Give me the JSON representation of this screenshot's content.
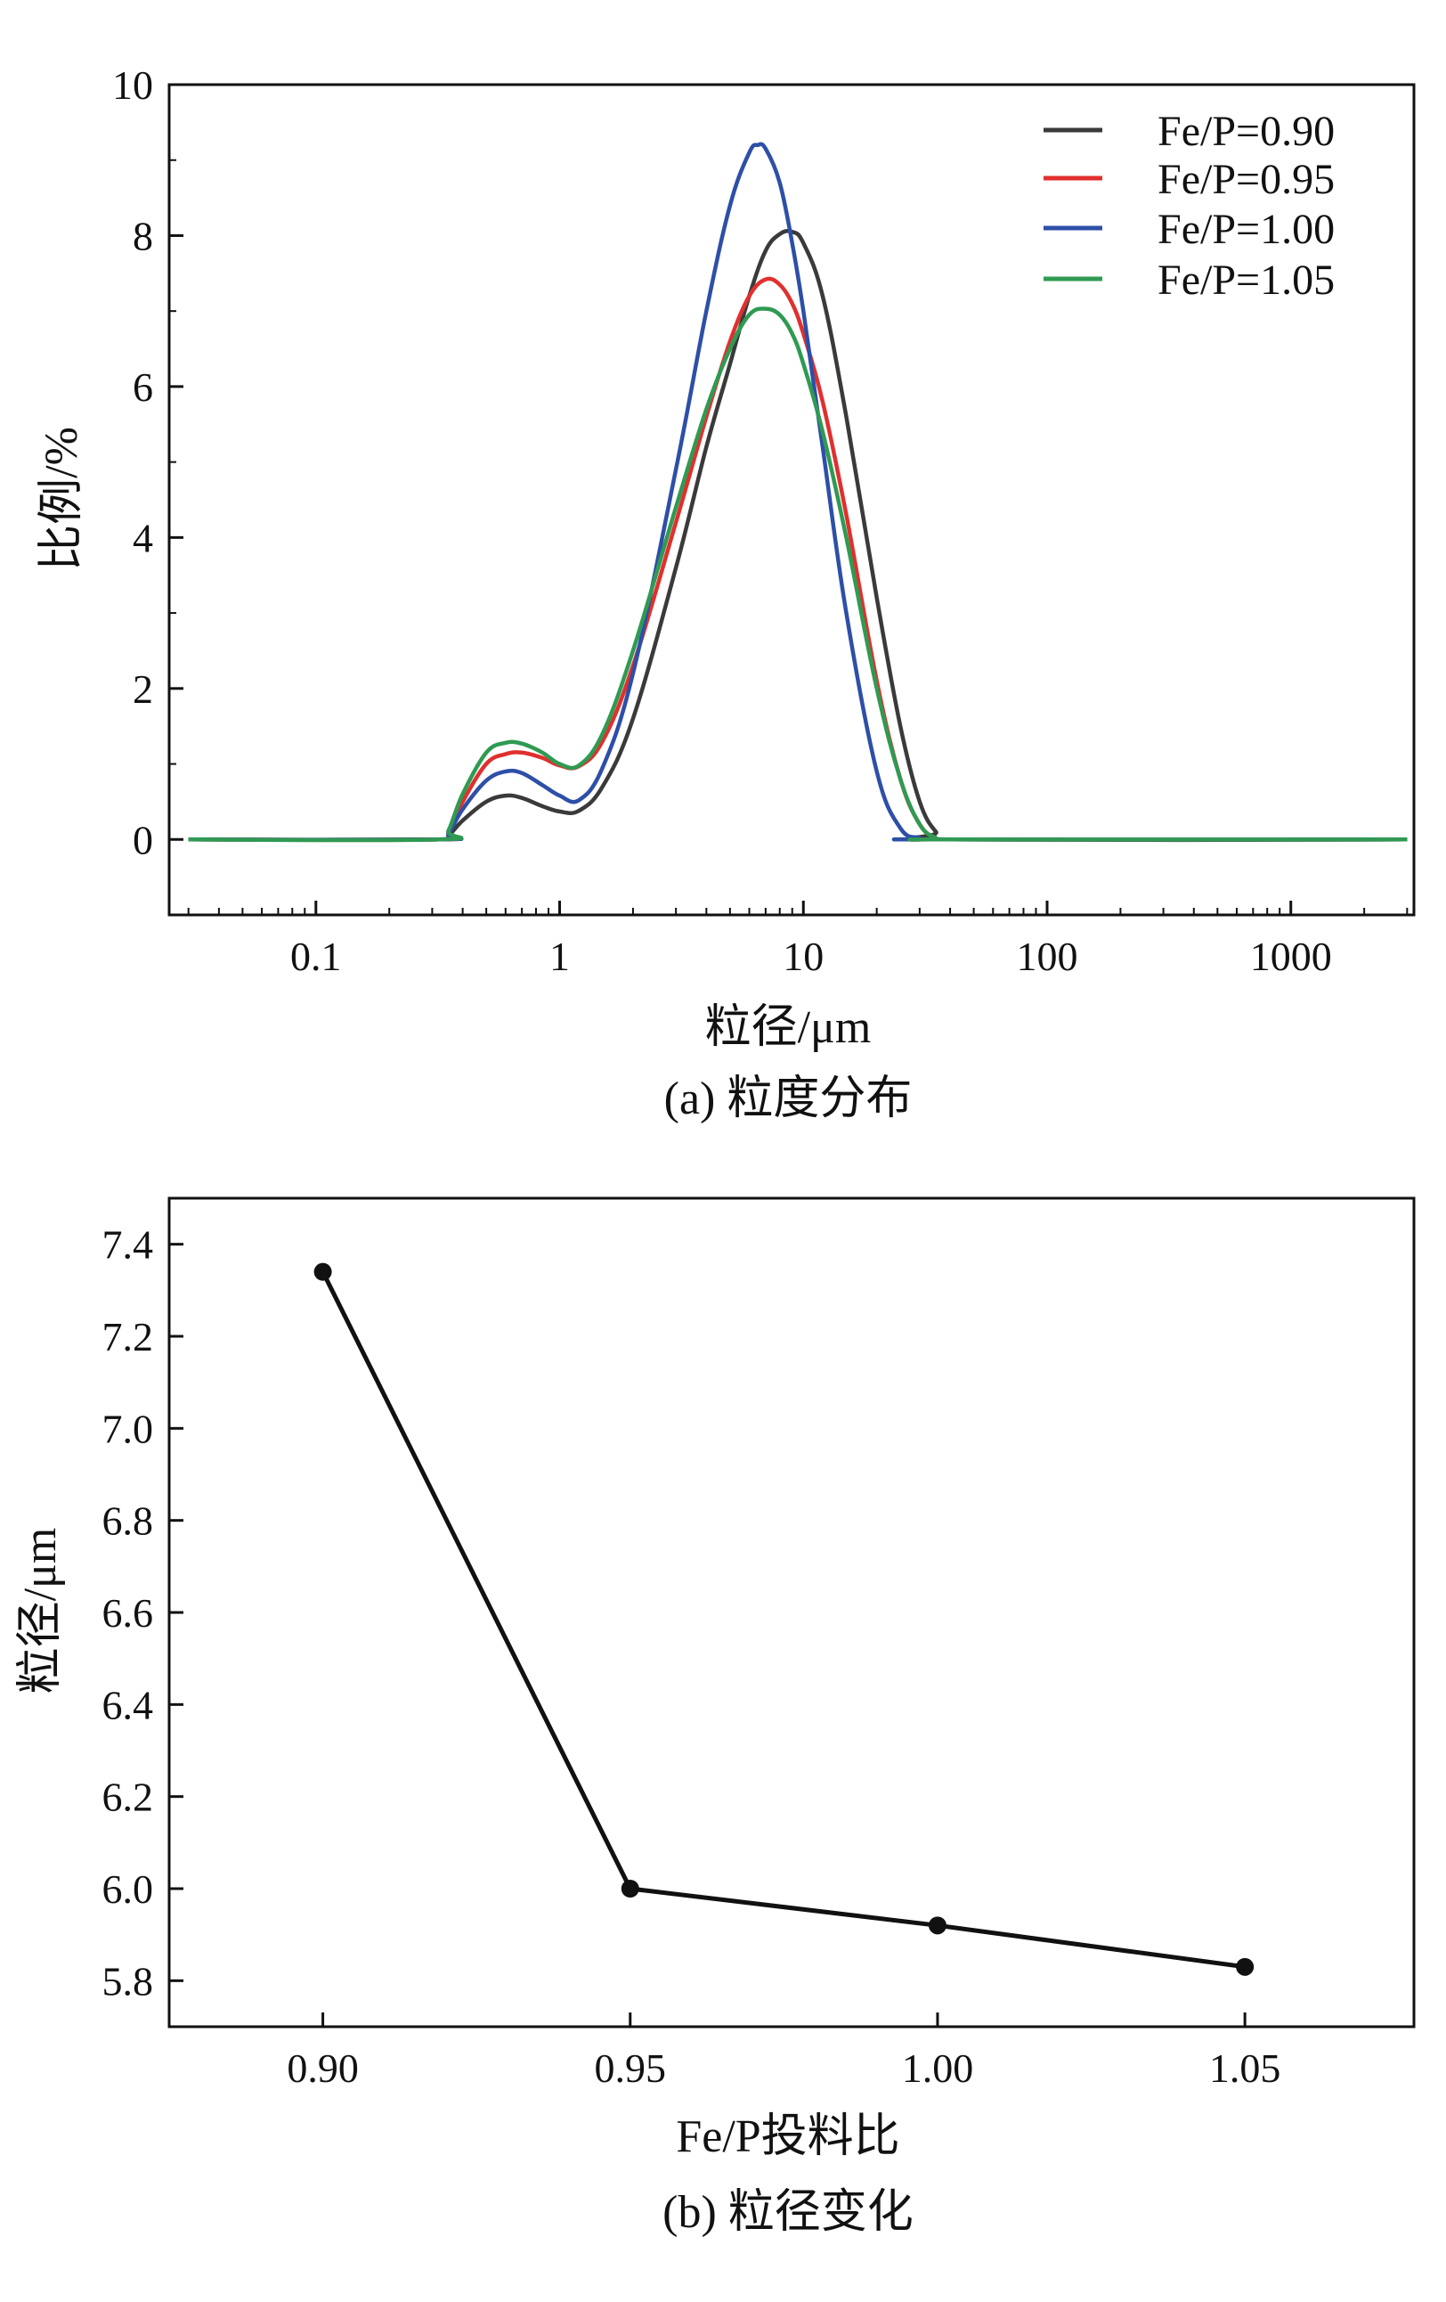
{
  "chart_data": [
    {
      "id": "a",
      "type": "line",
      "caption": "(a) 粒度分布",
      "xlabel": "粒径/μm",
      "ylabel": "比例/%",
      "xscale": "log",
      "xlim": [
        0.025,
        3200
      ],
      "ylim": [
        -1,
        10
      ],
      "xticks": [
        0.1,
        1,
        10,
        100,
        1000
      ],
      "xtick_labels": [
        "0.1",
        "1",
        "10",
        "100",
        "1000"
      ],
      "yticks": [
        0,
        2,
        4,
        6,
        8,
        10
      ],
      "ytick_labels": [
        "0",
        "2",
        "4",
        "6",
        "8",
        "10"
      ],
      "legend_position": "top-right",
      "series": [
        {
          "name": "Fe/P=0.90",
          "color": "#3a3a3a",
          "points": [
            [
              0.03,
              0
            ],
            [
              0.32,
              0
            ],
            [
              0.35,
              0.05
            ],
            [
              0.4,
              0.25
            ],
            [
              0.5,
              0.5
            ],
            [
              0.6,
              0.58
            ],
            [
              0.7,
              0.55
            ],
            [
              0.85,
              0.44
            ],
            [
              1.0,
              0.37
            ],
            [
              1.2,
              0.38
            ],
            [
              1.5,
              0.7
            ],
            [
              2.0,
              1.6
            ],
            [
              3.0,
              3.6
            ],
            [
              4.0,
              5.2
            ],
            [
              5.0,
              6.3
            ],
            [
              6.0,
              7.2
            ],
            [
              7.0,
              7.8
            ],
            [
              8.0,
              8.02
            ],
            [
              9.0,
              8.05
            ],
            [
              10.0,
              7.9
            ],
            [
              12.0,
              7.2
            ],
            [
              15.0,
              5.6
            ],
            [
              20.0,
              3.2
            ],
            [
              25.0,
              1.5
            ],
            [
              30.0,
              0.5
            ],
            [
              35.0,
              0.1
            ],
            [
              40.0,
              0
            ],
            [
              3000,
              0
            ]
          ]
        },
        {
          "name": "Fe/P=0.95",
          "color": "#e0302e",
          "points": [
            [
              0.03,
              0
            ],
            [
              0.32,
              0
            ],
            [
              0.35,
              0.1
            ],
            [
              0.4,
              0.5
            ],
            [
              0.5,
              1.0
            ],
            [
              0.6,
              1.13
            ],
            [
              0.7,
              1.15
            ],
            [
              0.85,
              1.08
            ],
            [
              1.0,
              0.98
            ],
            [
              1.2,
              0.97
            ],
            [
              1.5,
              1.3
            ],
            [
              2.0,
              2.3
            ],
            [
              3.0,
              4.2
            ],
            [
              4.0,
              5.6
            ],
            [
              5.0,
              6.6
            ],
            [
              6.0,
              7.2
            ],
            [
              7.0,
              7.42
            ],
            [
              8.0,
              7.35
            ],
            [
              9.0,
              7.1
            ],
            [
              10.0,
              6.7
            ],
            [
              12.0,
              5.8
            ],
            [
              15.0,
              4.3
            ],
            [
              20.0,
              2.1
            ],
            [
              25.0,
              0.8
            ],
            [
              30.0,
              0.2
            ],
            [
              35.0,
              0.02
            ],
            [
              40.0,
              0
            ],
            [
              3000,
              0
            ]
          ]
        },
        {
          "name": "Fe/P=1.00",
          "color": "#2e4fa8",
          "points": [
            [
              0.03,
              0
            ],
            [
              0.32,
              0
            ],
            [
              0.35,
              0.08
            ],
            [
              0.4,
              0.4
            ],
            [
              0.5,
              0.78
            ],
            [
              0.6,
              0.9
            ],
            [
              0.7,
              0.88
            ],
            [
              0.85,
              0.72
            ],
            [
              1.0,
              0.58
            ],
            [
              1.2,
              0.52
            ],
            [
              1.5,
              0.95
            ],
            [
              2.0,
              2.2
            ],
            [
              3.0,
              4.9
            ],
            [
              4.0,
              7.0
            ],
            [
              5.0,
              8.4
            ],
            [
              6.0,
              9.1
            ],
            [
              6.5,
              9.2
            ],
            [
              7.0,
              9.15
            ],
            [
              8.0,
              8.7
            ],
            [
              9.0,
              7.9
            ],
            [
              10.0,
              7.0
            ],
            [
              12.0,
              5.2
            ],
            [
              15.0,
              3.0
            ],
            [
              20.0,
              0.9
            ],
            [
              25.0,
              0.15
            ],
            [
              30.0,
              0.02
            ],
            [
              35.0,
              0
            ],
            [
              3000,
              0
            ]
          ]
        },
        {
          "name": "Fe/P=1.05",
          "color": "#2f9a52",
          "points": [
            [
              0.03,
              0
            ],
            [
              0.32,
              0
            ],
            [
              0.35,
              0.12
            ],
            [
              0.4,
              0.6
            ],
            [
              0.5,
              1.15
            ],
            [
              0.6,
              1.28
            ],
            [
              0.7,
              1.27
            ],
            [
              0.85,
              1.15
            ],
            [
              1.0,
              1.0
            ],
            [
              1.2,
              0.98
            ],
            [
              1.5,
              1.4
            ],
            [
              2.0,
              2.5
            ],
            [
              3.0,
              4.4
            ],
            [
              4.0,
              5.7
            ],
            [
              5.0,
              6.5
            ],
            [
              6.0,
              6.95
            ],
            [
              7.0,
              7.03
            ],
            [
              8.0,
              6.95
            ],
            [
              9.0,
              6.7
            ],
            [
              10.0,
              6.3
            ],
            [
              12.0,
              5.4
            ],
            [
              15.0,
              4.0
            ],
            [
              20.0,
              2.0
            ],
            [
              25.0,
              0.8
            ],
            [
              30.0,
              0.2
            ],
            [
              35.0,
              0.02
            ],
            [
              40.0,
              0
            ],
            [
              3000,
              0
            ]
          ]
        }
      ]
    },
    {
      "id": "b",
      "type": "line",
      "caption": "(b) 粒径变化",
      "xlabel": "Fe/P投料比",
      "ylabel": "粒径/μm",
      "xlim": [
        0.875,
        1.0775
      ],
      "ylim": [
        5.7,
        7.5
      ],
      "xticks": [
        0.9,
        0.95,
        1.0,
        1.05
      ],
      "xtick_labels": [
        "0.90",
        "0.95",
        "1.00",
        "1.05"
      ],
      "yticks": [
        5.8,
        6.0,
        6.2,
        6.4,
        6.6,
        6.8,
        7.0,
        7.2,
        7.4
      ],
      "ytick_labels": [
        "5.8",
        "6.0",
        "6.2",
        "6.4",
        "6.6",
        "6.8",
        "7.0",
        "7.2",
        "7.4"
      ],
      "series": [
        {
          "name": "粒径",
          "color": "#111111",
          "points": [
            [
              0.9,
              7.34
            ],
            [
              0.95,
              6.0
            ],
            [
              1.0,
              5.92
            ],
            [
              1.05,
              5.83
            ]
          ]
        }
      ]
    }
  ]
}
